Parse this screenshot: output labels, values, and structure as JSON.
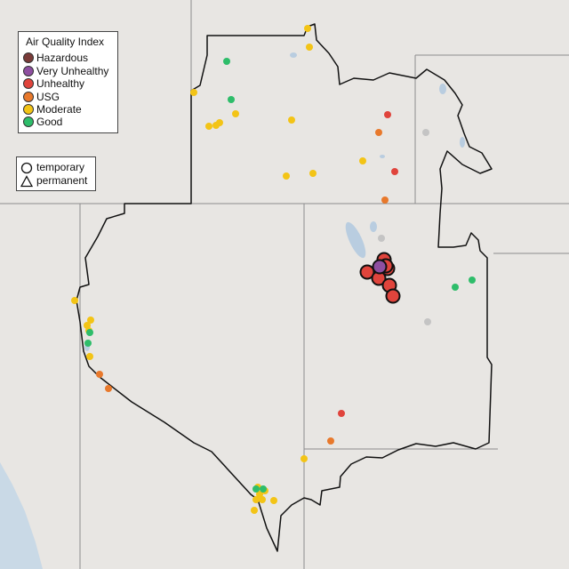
{
  "legend": {
    "title": "Air Quality Index",
    "categories": [
      {
        "label": "Hazardous",
        "color": "#7a3b38"
      },
      {
        "label": "Very Unhealthy",
        "color": "#8e4fa0"
      },
      {
        "label": "Unhealthy",
        "color": "#e0443c"
      },
      {
        "label": "USG",
        "color": "#e8792c"
      },
      {
        "label": "Moderate",
        "color": "#f3c416"
      },
      {
        "label": "Good",
        "color": "#2ebd6a"
      }
    ]
  },
  "monitor_legend": {
    "items": [
      {
        "label": "temporary",
        "shape": "circle-icon"
      },
      {
        "label": "permanent",
        "shape": "triangle-icon"
      }
    ]
  },
  "colors": {
    "no_data": "#c4c4c4",
    "terrain": "#e8e6e3",
    "ocean": "#c9d9e6",
    "water": "#b9cde0",
    "boundary": "#111111"
  },
  "monitors": [
    {
      "aqi": "Unhealthy",
      "type": "temporary"
    },
    {
      "aqi": "Unhealthy",
      "type": "temporary"
    },
    {
      "aqi": "Unhealthy",
      "type": "temporary"
    },
    {
      "aqi": "Unhealthy",
      "type": "temporary"
    },
    {
      "aqi": "Unhealthy",
      "type": "temporary"
    },
    {
      "aqi": "Unhealthy",
      "type": "temporary"
    },
    {
      "aqi": "Unhealthy",
      "type": "temporary"
    },
    {
      "aqi": "Very Unhealthy",
      "type": "temporary"
    }
  ]
}
